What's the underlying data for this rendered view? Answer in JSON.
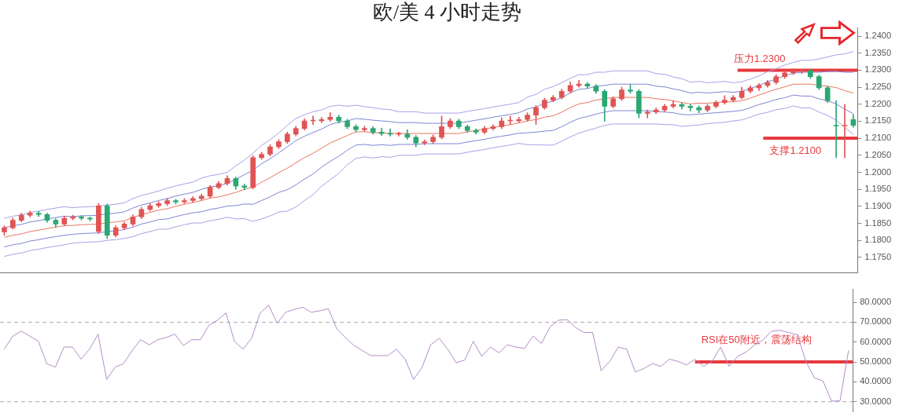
{
  "chart_data": [
    {
      "type": "candlestick",
      "title": "欧/美 4 小时走势",
      "categories": [
        null,
        null,
        null,
        null,
        null,
        null,
        null,
        null,
        null,
        null,
        null,
        null,
        null,
        null,
        null,
        null,
        null,
        null,
        null,
        null,
        null,
        null,
        null,
        null,
        null,
        null,
        null,
        null,
        null,
        null,
        null,
        null,
        null,
        null,
        null,
        null,
        null,
        null,
        null,
        null,
        null,
        null,
        null,
        null,
        null,
        null,
        null,
        null,
        null,
        null,
        null,
        null,
        null,
        null,
        null,
        null,
        null,
        null,
        null,
        null,
        null,
        null,
        null,
        null,
        null,
        null,
        null,
        null,
        null,
        null,
        null,
        null,
        null,
        null,
        null,
        null,
        null,
        null,
        null,
        null,
        null,
        null,
        null,
        null,
        null,
        null,
        null,
        null,
        null,
        null,
        null,
        null,
        null,
        null,
        null,
        null,
        null,
        null,
        null,
        null
      ],
      "ohlc": [
        [
          1.1825,
          1.1843,
          1.1815,
          1.1837
        ],
        [
          1.1837,
          1.1866,
          1.1833,
          1.1859
        ],
        [
          1.1859,
          1.188,
          1.1854,
          1.1874
        ],
        [
          1.1874,
          1.1886,
          1.1869,
          1.188
        ],
        [
          1.188,
          1.1885,
          1.187,
          1.1876
        ],
        [
          1.1876,
          1.188,
          1.1853,
          1.1859
        ],
        [
          1.1859,
          1.1864,
          1.1838,
          1.1848
        ],
        [
          1.1848,
          1.1871,
          1.1843,
          1.1865
        ],
        [
          1.1865,
          1.1874,
          1.186,
          1.1869
        ],
        [
          1.1869,
          1.1873,
          1.186,
          1.1865
        ],
        [
          1.1865,
          1.1869,
          1.1857,
          1.1863
        ],
        [
          1.1826,
          1.1908,
          1.182,
          1.1902
        ],
        [
          1.1902,
          1.1907,
          1.1805,
          1.1815
        ],
        [
          1.1815,
          1.1843,
          1.181,
          1.1837
        ],
        [
          1.1837,
          1.1854,
          1.1832,
          1.1848
        ],
        [
          1.1848,
          1.1875,
          1.1843,
          1.1869
        ],
        [
          1.1869,
          1.1897,
          1.1864,
          1.1891
        ],
        [
          1.1891,
          1.1908,
          1.1886,
          1.1902
        ],
        [
          1.1902,
          1.1914,
          1.1897,
          1.1908
        ],
        [
          1.1908,
          1.1923,
          1.1903,
          1.1917
        ],
        [
          1.1917,
          1.1921,
          1.1907,
          1.1913
        ],
        [
          1.1913,
          1.1923,
          1.1908,
          1.1917
        ],
        [
          1.1917,
          1.1929,
          1.1912,
          1.1923
        ],
        [
          1.1923,
          1.1936,
          1.1918,
          1.193
        ],
        [
          1.193,
          1.1962,
          1.1925,
          1.1956
        ],
        [
          1.1956,
          1.1973,
          1.1951,
          1.1967
        ],
        [
          1.1967,
          1.199,
          1.1962,
          1.1982
        ],
        [
          1.1982,
          1.1986,
          1.195,
          1.196
        ],
        [
          1.196,
          1.1965,
          1.1948,
          1.1956
        ],
        [
          1.1956,
          1.2049,
          1.1951,
          1.2043
        ],
        [
          1.2043,
          1.2059,
          1.2038,
          1.2053
        ],
        [
          1.2053,
          1.2081,
          1.2048,
          1.2075
        ],
        [
          1.2075,
          1.2096,
          1.207,
          1.209
        ],
        [
          1.209,
          1.2118,
          1.2085,
          1.2112
        ],
        [
          1.2112,
          1.2135,
          1.2107,
          1.2129
        ],
        [
          1.2129,
          1.2157,
          1.2124,
          1.2151
        ],
        [
          1.2151,
          1.2165,
          1.214,
          1.2151
        ],
        [
          1.2151,
          1.2161,
          1.2146,
          1.2155
        ],
        [
          1.2155,
          1.2175,
          1.215,
          1.2162
        ],
        [
          1.2162,
          1.2168,
          1.2145,
          1.2151
        ],
        [
          1.2151,
          1.2156,
          1.2128,
          1.2134
        ],
        [
          1.2134,
          1.214,
          1.2119,
          1.2125
        ],
        [
          1.2125,
          1.2135,
          1.212,
          1.2129
        ],
        [
          1.2129,
          1.2134,
          1.2112,
          1.2118
        ],
        [
          1.2118,
          1.213,
          1.2108,
          1.2114
        ],
        [
          1.2114,
          1.2128,
          1.2106,
          1.2112
        ],
        [
          1.2112,
          1.2118,
          1.2106,
          1.2112
        ],
        [
          1.2112,
          1.2125,
          1.2097,
          1.2103
        ],
        [
          1.2103,
          1.2108,
          1.2075,
          1.2086
        ],
        [
          1.2086,
          1.2095,
          1.2081,
          1.209
        ],
        [
          1.209,
          1.211,
          1.2085,
          1.2103
        ],
        [
          1.2103,
          1.2165,
          1.2098,
          1.2134
        ],
        [
          1.2134,
          1.2158,
          1.2129,
          1.2151
        ],
        [
          1.2151,
          1.2156,
          1.2128,
          1.2134
        ],
        [
          1.2134,
          1.2139,
          1.2117,
          1.2123
        ],
        [
          1.2123,
          1.2128,
          1.2112,
          1.2118
        ],
        [
          1.2118,
          1.2135,
          1.2113,
          1.2129
        ],
        [
          1.2129,
          1.214,
          1.2124,
          1.2134
        ],
        [
          1.2134,
          1.216,
          1.2129,
          1.2151
        ],
        [
          1.2151,
          1.2165,
          1.214,
          1.2151
        ],
        [
          1.2151,
          1.2162,
          1.2146,
          1.2155
        ],
        [
          1.2155,
          1.2175,
          1.215,
          1.2168
        ],
        [
          1.2168,
          1.2196,
          1.214,
          1.219
        ],
        [
          1.219,
          1.2218,
          1.2185,
          1.2212
        ],
        [
          1.2212,
          1.2226,
          1.2207,
          1.222
        ],
        [
          1.222,
          1.2244,
          1.2215,
          1.2238
        ],
        [
          1.2238,
          1.2265,
          1.2233,
          1.2255
        ],
        [
          1.2255,
          1.227,
          1.225,
          1.2259
        ],
        [
          1.2259,
          1.2264,
          1.2247,
          1.2253
        ],
        [
          1.2253,
          1.2258,
          1.2232,
          1.2238
        ],
        [
          1.2238,
          1.2243,
          1.215,
          1.2194
        ],
        [
          1.2194,
          1.2222,
          1.2189,
          1.2216
        ],
        [
          1.2216,
          1.225,
          1.2211,
          1.2242
        ],
        [
          1.2242,
          1.2258,
          1.2232,
          1.2238
        ],
        [
          1.2238,
          1.2243,
          1.216,
          1.2173
        ],
        [
          1.2173,
          1.2183,
          1.216,
          1.2177
        ],
        [
          1.2177,
          1.2189,
          1.2172,
          1.2183
        ],
        [
          1.2183,
          1.22,
          1.2178,
          1.2194
        ],
        [
          1.2194,
          1.221,
          1.2189,
          1.2199
        ],
        [
          1.2199,
          1.2204,
          1.2186,
          1.2194
        ],
        [
          1.2194,
          1.2199,
          1.218,
          1.219
        ],
        [
          1.219,
          1.2195,
          1.2175,
          1.2183
        ],
        [
          1.2183,
          1.22,
          1.2178,
          1.2194
        ],
        [
          1.2194,
          1.2211,
          1.2189,
          1.2205
        ],
        [
          1.2205,
          1.2225,
          1.22,
          1.2212
        ],
        [
          1.2212,
          1.2226,
          1.2207,
          1.222
        ],
        [
          1.222,
          1.225,
          1.2215,
          1.2238
        ],
        [
          1.2238,
          1.2254,
          1.2233,
          1.2248
        ],
        [
          1.2248,
          1.2261,
          1.224,
          1.2255
        ],
        [
          1.2255,
          1.227,
          1.225,
          1.2264
        ],
        [
          1.2264,
          1.2287,
          1.2259,
          1.2281
        ],
        [
          1.2281,
          1.23,
          1.2276,
          1.2292
        ],
        [
          1.2292,
          1.2304,
          1.2287,
          1.2298
        ],
        [
          1.2298,
          1.2303,
          1.229,
          1.2298
        ],
        [
          1.2298,
          1.2303,
          1.2276,
          1.2281
        ],
        [
          1.2281,
          1.2286,
          1.2243,
          1.2248
        ],
        [
          1.2248,
          1.2253,
          1.2205,
          1.221
        ],
        [
          1.2138,
          1.221,
          1.2043,
          1.2136
        ],
        [
          1.2136,
          1.22,
          1.2043,
          1.2138
        ],
        [
          1.2155,
          1.217,
          1.2132,
          1.2138
        ]
      ],
      "colors": [
        "#e05454",
        "#e05454",
        "#e05454",
        "#e05454",
        "#2aa872",
        "#2aa872",
        "#2aa872",
        "#e05454",
        "#e05454",
        "#2aa872",
        "#2aa872",
        "#e05454",
        "#2aa872",
        "#e05454",
        "#e05454",
        "#e05454",
        "#e05454",
        "#e05454",
        "#e05454",
        "#e05454",
        "#2aa872",
        "#e05454",
        "#e05454",
        "#e05454",
        "#e05454",
        "#e05454",
        "#e05454",
        "#2aa872",
        "#2aa872",
        "#e05454",
        "#e05454",
        "#e05454",
        "#e05454",
        "#e05454",
        "#e05454",
        "#e05454",
        "#e05454",
        "#e05454",
        "#e05454",
        "#2aa872",
        "#2aa872",
        "#2aa872",
        "#e05454",
        "#2aa872",
        "#2aa872",
        "#2aa872",
        "#e05454",
        "#2aa872",
        "#2aa872",
        "#e05454",
        "#e05454",
        "#e05454",
        "#e05454",
        "#2aa872",
        "#2aa872",
        "#2aa872",
        "#e05454",
        "#e05454",
        "#e05454",
        "#e05454",
        "#e05454",
        "#e05454",
        "#e05454",
        "#e05454",
        "#e05454",
        "#e05454",
        "#e05454",
        "#e05454",
        "#2aa872",
        "#2aa872",
        "#2aa872",
        "#e05454",
        "#e05454",
        "#2aa872",
        "#2aa872",
        "#e05454",
        "#e05454",
        "#e05454",
        "#e05454",
        "#2aa872",
        "#2aa872",
        "#2aa872",
        "#e05454",
        "#e05454",
        "#e05454",
        "#e05454",
        "#e05454",
        "#e05454",
        "#e05454",
        "#e05454",
        "#e05454",
        "#e05454",
        "#e05454",
        "#e05454",
        "#2aa872",
        "#2aa872",
        "#2aa872",
        "#2aa872",
        "#e05454",
        "#2aa872"
      ],
      "series": [
        {
          "type": "line",
          "color": "#aa9ee6",
          "values": [
            1.1865,
            1.1871,
            1.1875,
            1.1882,
            1.1886,
            1.1891,
            1.1895,
            1.1899,
            1.1896,
            1.1898,
            1.1899,
            1.19,
            1.1904,
            1.1906,
            1.191,
            1.1923,
            1.1932,
            1.1938,
            1.1945,
            1.1953,
            1.196,
            1.1966,
            1.1971,
            1.1983,
            1.199,
            1.1994,
            1.2,
            1.2019,
            1.2036,
            1.2056,
            1.2079,
            1.2096,
            1.2115,
            1.2138,
            1.2158,
            1.2169,
            1.2178,
            1.2183,
            1.2194,
            1.2197,
            1.2194,
            1.2197,
            1.2193,
            1.219,
            1.2186,
            1.2184,
            1.2178,
            1.2178,
            1.2178,
            1.2174,
            1.2174,
            1.2174,
            1.2174,
            1.2174,
            1.2179,
            1.2183,
            1.2187,
            1.2192,
            1.2196,
            1.22,
            1.2205,
            1.2221,
            1.2229,
            1.2244,
            1.2252,
            1.2263,
            1.2276,
            1.2287,
            1.2287,
            1.2294,
            1.2294,
            1.2298,
            1.2298,
            1.2298,
            1.2298,
            1.2298,
            1.229,
            1.2288,
            1.228,
            1.2275,
            1.2265,
            1.2267,
            1.2263,
            1.2265,
            1.2267,
            1.2263,
            1.2266,
            1.2274,
            1.2283,
            1.2296,
            1.2304,
            1.2315,
            1.2323,
            1.2329,
            1.2329,
            1.2333,
            1.2339,
            1.2345,
            1.2348,
            1.2355
          ]
        },
        {
          "type": "line",
          "color": "#7d84d4",
          "values": [
            1.1837,
            1.1843,
            1.1847,
            1.1854,
            1.1858,
            1.1863,
            1.1867,
            1.1871,
            1.187,
            1.1872,
            1.1873,
            1.1874,
            1.1878,
            1.188,
            1.1884,
            1.1895,
            1.1904,
            1.191,
            1.1917,
            1.1923,
            1.193,
            1.1936,
            1.1941,
            1.195,
            1.1957,
            1.1961,
            1.1967,
            1.198,
            1.1993,
            1.2006,
            1.2025,
            1.204,
            1.2057,
            1.2075,
            1.2093,
            1.2106,
            1.2117,
            1.2127,
            1.214,
            1.2147,
            1.2151,
            1.2158,
            1.2156,
            1.2153,
            1.2151,
            1.2149,
            1.2146,
            1.2146,
            1.2146,
            1.2144,
            1.2144,
            1.2144,
            1.2144,
            1.2144,
            1.2149,
            1.2153,
            1.2157,
            1.2162,
            1.2166,
            1.217,
            1.2175,
            1.2186,
            1.2192,
            1.2203,
            1.2209,
            1.222,
            1.2233,
            1.2244,
            1.2246,
            1.2253,
            1.2255,
            1.2259,
            1.2259,
            1.2259,
            1.2259,
            1.2259,
            1.2253,
            1.2251,
            1.2245,
            1.224,
            1.2233,
            1.2235,
            1.2233,
            1.2235,
            1.2237,
            1.2235,
            1.2238,
            1.2246,
            1.2255,
            1.2266,
            1.2274,
            1.2283,
            1.2291,
            1.2294,
            1.2294,
            1.2294,
            1.2296,
            1.2297,
            1.2294,
            1.2294
          ]
        },
        {
          "type": "line",
          "color": "#e8765f",
          "values": [
            1.1809,
            1.1815,
            1.1819,
            1.1826,
            1.183,
            1.1835,
            1.1839,
            1.1843,
            1.1844,
            1.1846,
            1.1847,
            1.1848,
            1.1852,
            1.1854,
            1.1858,
            1.1867,
            1.1876,
            1.1882,
            1.1889,
            1.1893,
            1.19,
            1.1906,
            1.1911,
            1.1917,
            1.1924,
            1.1928,
            1.1934,
            1.1941,
            1.195,
            1.1956,
            1.1971,
            1.1984,
            1.1999,
            1.2012,
            1.2028,
            1.2043,
            1.2056,
            1.2071,
            1.2086,
            1.2097,
            1.2108,
            1.2119,
            1.2119,
            1.2116,
            1.2116,
            1.2114,
            1.2114,
            1.2114,
            1.2114,
            1.2114,
            1.2114,
            1.2114,
            1.2114,
            1.2114,
            1.2119,
            1.2123,
            1.2127,
            1.2132,
            1.2136,
            1.214,
            1.2145,
            1.2151,
            1.2155,
            1.2162,
            1.2166,
            1.2177,
            1.219,
            1.2201,
            1.2205,
            1.2212,
            1.2216,
            1.222,
            1.222,
            1.222,
            1.222,
            1.222,
            1.2216,
            1.2214,
            1.221,
            1.2205,
            1.2201,
            1.2203,
            1.2203,
            1.2205,
            1.2207,
            1.2207,
            1.221,
            1.2218,
            1.2227,
            1.2236,
            1.2244,
            1.2251,
            1.2259,
            1.2259,
            1.2259,
            1.2255,
            1.2253,
            1.2249,
            1.224,
            1.2233
          ]
        },
        {
          "type": "line",
          "color": "#7d84d4",
          "values": [
            1.1781,
            1.1787,
            1.1791,
            1.1798,
            1.1802,
            1.1807,
            1.1811,
            1.1815,
            1.1818,
            1.182,
            1.1821,
            1.1822,
            1.1826,
            1.1828,
            1.1832,
            1.1839,
            1.1848,
            1.1854,
            1.1861,
            1.1863,
            1.187,
            1.1876,
            1.1881,
            1.1884,
            1.1891,
            1.1895,
            1.1901,
            1.1902,
            1.1907,
            1.1906,
            1.1917,
            1.1928,
            1.1941,
            1.1949,
            1.1963,
            1.198,
            1.1995,
            1.2015,
            1.2032,
            1.2047,
            1.2065,
            1.208,
            1.2082,
            1.2079,
            1.2081,
            1.2079,
            1.2082,
            1.2082,
            1.2082,
            1.2084,
            1.2084,
            1.2084,
            1.2084,
            1.2084,
            1.2089,
            1.2093,
            1.2097,
            1.2102,
            1.2106,
            1.211,
            1.2115,
            1.2116,
            1.2118,
            1.2121,
            1.2123,
            1.2134,
            1.2147,
            1.2158,
            1.2164,
            1.2171,
            1.2177,
            1.2181,
            1.2181,
            1.2181,
            1.2181,
            1.2181,
            1.2179,
            1.2177,
            1.2175,
            1.217,
            1.2169,
            1.2171,
            1.2173,
            1.2175,
            1.2177,
            1.2179,
            1.2182,
            1.219,
            1.2199,
            1.2206,
            1.2214,
            1.2219,
            1.2227,
            1.2224,
            1.2224,
            1.2216,
            1.221,
            1.2201,
            1.2186,
            1.2172
          ]
        },
        {
          "type": "line",
          "color": "#aa9ee6",
          "values": [
            1.1753,
            1.1759,
            1.1763,
            1.177,
            1.1774,
            1.1779,
            1.1783,
            1.1787,
            1.1792,
            1.1794,
            1.1795,
            1.1796,
            1.18,
            1.1802,
            1.1806,
            1.1811,
            1.182,
            1.1826,
            1.1833,
            1.1833,
            1.184,
            1.1846,
            1.1851,
            1.1851,
            1.1858,
            1.1862,
            1.1868,
            1.1863,
            1.1864,
            1.1856,
            1.1863,
            1.1872,
            1.1883,
            1.1886,
            1.1898,
            1.1917,
            1.1934,
            1.1959,
            1.1978,
            1.1997,
            1.2022,
            1.2041,
            1.2045,
            1.2042,
            1.2046,
            1.2044,
            1.205,
            1.205,
            1.205,
            1.2054,
            1.2054,
            1.2054,
            1.2054,
            1.2054,
            1.2059,
            1.2063,
            1.2067,
            1.2072,
            1.2076,
            1.208,
            1.2085,
            1.2081,
            1.2081,
            1.208,
            1.208,
            1.2091,
            1.2104,
            1.2115,
            1.2123,
            1.213,
            1.2138,
            1.2142,
            1.2142,
            1.2142,
            1.2142,
            1.2142,
            1.2142,
            1.214,
            1.214,
            1.2135,
            1.2137,
            1.2139,
            1.2143,
            1.2145,
            1.2147,
            1.2151,
            1.2154,
            1.2162,
            1.2171,
            1.2176,
            1.2184,
            1.2187,
            1.2195,
            1.2189,
            1.2189,
            1.2177,
            1.2167,
            1.2153,
            1.2132,
            1.2111
          ]
        }
      ],
      "ylim": [
        1.1705,
        1.2425
      ],
      "yticks": [
        {
          "value": 1.175,
          "label": "1.1750"
        },
        {
          "value": 1.18,
          "label": "1.1800"
        },
        {
          "value": 1.185,
          "label": "1.1850"
        },
        {
          "value": 1.19,
          "label": "1.1900"
        },
        {
          "value": 1.195,
          "label": "1.1950"
        },
        {
          "value": 1.2,
          "label": "1.2000"
        },
        {
          "value": 1.205,
          "label": "1.2050"
        },
        {
          "value": 1.21,
          "label": "1.2100"
        },
        {
          "value": 1.215,
          "label": "1.2150"
        },
        {
          "value": 1.22,
          "label": "1.2200"
        },
        {
          "value": 1.225,
          "label": "1.2250"
        },
        {
          "value": 1.23,
          "label": "1.2300"
        },
        {
          "value": 1.235,
          "label": "1.2350"
        },
        {
          "value": 1.24,
          "label": "1.2400"
        }
      ],
      "ref_lines": [
        {
          "axis": "y",
          "value": 1.23,
          "label": "压力1.2300",
          "color": "#e8383d"
        },
        {
          "axis": "y",
          "value": 1.21,
          "label": "支撑1.2100",
          "color": "#e8383d"
        }
      ],
      "tick_labels": "y"
    },
    {
      "type": "line",
      "categories": [
        null,
        null,
        null,
        null,
        null,
        null,
        null,
        null,
        null,
        null,
        null,
        null,
        null,
        null,
        null,
        null,
        null,
        null,
        null,
        null,
        null,
        null,
        null,
        null,
        null,
        null,
        null,
        null,
        null,
        null,
        null,
        null,
        null,
        null,
        null,
        null,
        null,
        null,
        null,
        null,
        null,
        null,
        null,
        null,
        null,
        null,
        null,
        null,
        null,
        null,
        null,
        null,
        null,
        null,
        null,
        null,
        null,
        null,
        null,
        null,
        null,
        null,
        null,
        null,
        null,
        null,
        null,
        null,
        null,
        null,
        null,
        null,
        null,
        null,
        null,
        null,
        null,
        null,
        null,
        null,
        null,
        null,
        null,
        null,
        null,
        null,
        null,
        null,
        null,
        null,
        null,
        null,
        null,
        null,
        null,
        null,
        null,
        null,
        null,
        null
      ],
      "series": [
        {
          "color": "#b48cc8",
          "values": [
            56.4,
            63,
            65.5,
            63,
            60.4,
            49,
            47.4,
            57.5,
            57.5,
            51.4,
            56.4,
            64,
            41.2,
            47.4,
            49.2,
            55.7,
            61.2,
            58.6,
            61.2,
            62.3,
            64,
            58.3,
            61.2,
            61.2,
            68.4,
            71,
            74.6,
            60.4,
            56.4,
            61.9,
            74.6,
            78.6,
            69.5,
            75,
            76.4,
            77.5,
            75,
            75.7,
            76.8,
            66.6,
            62.3,
            58.3,
            55.7,
            53.2,
            53.2,
            53.2,
            56.4,
            51.4,
            41.2,
            47.4,
            58.6,
            61.9,
            56.4,
            49.6,
            51,
            60.4,
            52.8,
            57.5,
            54.6,
            58.6,
            57.5,
            56.8,
            63,
            59.3,
            67.7,
            71,
            71.3,
            67.3,
            64.8,
            64.8,
            45.6,
            50.3,
            57.5,
            56.4,
            44.9,
            46.7,
            49.2,
            47.8,
            51.4,
            50.3,
            48.5,
            51.4,
            47.8,
            50.3,
            57.5,
            47.8,
            52.8,
            55,
            58.6,
            61.2,
            65.5,
            65.9,
            64.8,
            63.7,
            50.3,
            42,
            40.5,
            30.4,
            30.4,
            55.7
          ]
        }
      ],
      "ylim": [
        25,
        86.5
      ],
      "yticks": [
        {
          "value": 30,
          "label": "30.0000"
        },
        {
          "value": 40,
          "label": "40.0000"
        },
        {
          "value": 50,
          "label": "50.0000"
        },
        {
          "value": 60,
          "label": "60.0000"
        },
        {
          "value": 70,
          "label": "70.0000"
        },
        {
          "value": 80,
          "label": "80.0000"
        }
      ],
      "ref_lines": [
        {
          "axis": "y",
          "value": 70,
          "line_style": "dashed",
          "color": "#aaaaaa"
        },
        {
          "axis": "y",
          "value": 30,
          "line_style": "dashed",
          "color": "#aaaaaa"
        },
        {
          "axis": "y",
          "value": 50,
          "label": "RSI在50附近，震荡结构",
          "color": "#e8383d"
        }
      ],
      "tick_labels": "y"
    }
  ]
}
